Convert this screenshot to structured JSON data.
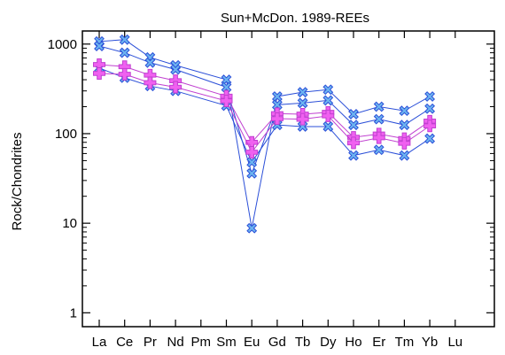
{
  "chart_data": {
    "type": "line",
    "title": "Sun+McDon. 1989-REEs",
    "xlabel": "",
    "ylabel": "Rock/Chondrites",
    "yscale": "log",
    "ylim": [
      0.7,
      1400
    ],
    "yticks": [
      1,
      10,
      100,
      1000
    ],
    "ytick_labels": [
      "1",
      "10",
      "100",
      "1000"
    ],
    "categories": [
      "La",
      "Ce",
      "Pr",
      "Nd",
      "Pm",
      "Sm",
      "Eu",
      "Gd",
      "Tb",
      "Dy",
      "Ho",
      "Er",
      "Tm",
      "Yb",
      "Lu"
    ],
    "grid": false,
    "legend": "none",
    "series": [
      {
        "marker": "x-cross",
        "color": "#2b4fd8",
        "marker_fill": "#6cb4f0",
        "values": [
          1070,
          1120,
          710,
          580,
          null,
          400,
          8.8,
          260,
          290,
          310,
          165,
          200,
          180,
          260,
          null
        ]
      },
      {
        "marker": "x-cross",
        "color": "#2b4fd8",
        "marker_fill": "#6cb4f0",
        "values": [
          950,
          800,
          620,
          520,
          null,
          330,
          36,
          210,
          220,
          235,
          125,
          145,
          125,
          190,
          null
        ]
      },
      {
        "marker": "x-cross",
        "color": "#2b4fd8",
        "marker_fill": "#6cb4f0",
        "values": [
          540,
          420,
          340,
          300,
          null,
          205,
          48,
          125,
          120,
          120,
          57,
          66,
          57,
          88,
          null
        ]
      },
      {
        "marker": "plus",
        "color": "#c040d0",
        "marker_fill": "#f060f0",
        "values": [
          590,
          560,
          450,
          390,
          null,
          262,
          80,
          167,
          165,
          173,
          91,
          99,
          88,
          138,
          null
        ]
      },
      {
        "marker": "plus",
        "color": "#c040d0",
        "marker_fill": "#f060f0",
        "values": [
          470,
          460,
          370,
          330,
          null,
          232,
          62,
          147,
          145,
          158,
          79,
          90,
          78,
          122,
          null
        ]
      }
    ]
  }
}
